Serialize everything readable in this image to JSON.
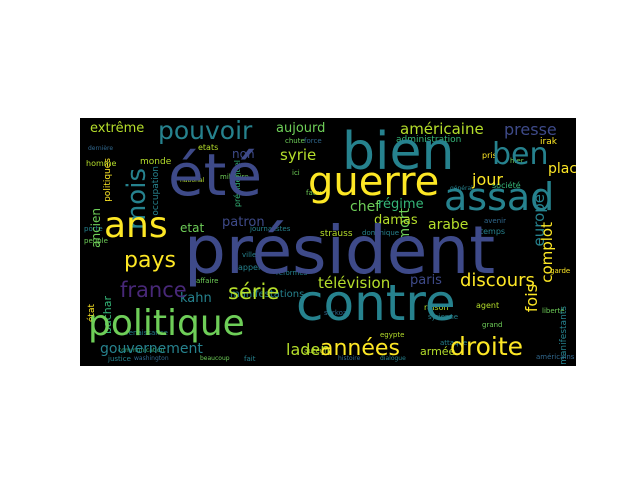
{
  "cloud": {
    "background": "#000000",
    "palette": [
      "#3e4a89",
      "#31688e",
      "#26828e",
      "#1f9e89",
      "#35b779",
      "#6ece58",
      "#b5de2b",
      "#fde725",
      "#482878"
    ],
    "words": {
      "president": "président",
      "contre": "contre",
      "ete": "été",
      "bien": "bien",
      "politique": "politique",
      "guerre": "guerre",
      "assad": "assad",
      "ben": "ben",
      "ans": "ans",
      "mois": "mois",
      "pouvoir": "pouvoir",
      "pays": "pays",
      "france": "france",
      "serie": "série",
      "annees": "années",
      "droite": "droite",
      "gouvernement": "gouvernement",
      "laden": "laden",
      "television": "télévision",
      "discours": "discours",
      "jour": "jour",
      "americaine": "américaine",
      "presse": "presse",
      "extreme": "extrême",
      "aujourd": "aujourd",
      "syrie": "syrie",
      "arabe": "arabe",
      "mort": "mort",
      "damas": "damas",
      "chef": "chef",
      "regime": "régime",
      "patron": "patron",
      "etat": "etat",
      "kahn": "kahn",
      "bachar": "bachar",
      "armee": "armée",
      "fois": "fois",
      "complot": "complot",
      "europe": "europe",
      "place": "place",
      "paris": "paris",
      "strauss": "strauss",
      "ancien": "ancien",
      "non": "non",
      "monde": "monde",
      "homme": "homme",
      "occupation": "occupation",
      "manifestations": "manifestations",
      "irak": "irak",
      "societe": "société",
      "raison": "raison",
      "agent": "agent",
      "administration": "administration",
      "etats": "etats",
      "pris": "pris",
      "chute": "chute",
      "national": "national",
      "presidentiel": "présidentiel",
      "politiques": "politiques",
      "derniere": "dernière",
      "temps": "temps",
      "dominique": "dominique",
      "egypte": "egypte",
      "sarkozy": "sarkozy",
      "faux": "faux",
      "militaire": "militaire",
      "justice": "justice",
      "renaissance": "renaissance",
      "communication": "communication",
      "etat_lower": "état",
      "peuple": "peuple",
      "porte": "porte",
      "syrienne": "syrienne",
      "attaque": "attaque",
      "grand": "grand",
      "manifestants": "manifestants",
      "americains": "américains",
      "washington": "washington",
      "beaucoup": "beaucoup",
      "fait": "fait",
      "auteur": "auteur",
      "dialogue": "dialogue",
      "histoire": "histoire",
      "appel": "appel",
      "ville": "ville",
      "reformes": "réformes",
      "general": "général",
      "hier": "hier",
      "force": "force",
      "affaire": "affaire",
      "journalistes": "journalistes",
      "avenir": "avenir",
      "ici": "ici",
      "garde": "garde",
      "liberte": "liberté"
    }
  }
}
